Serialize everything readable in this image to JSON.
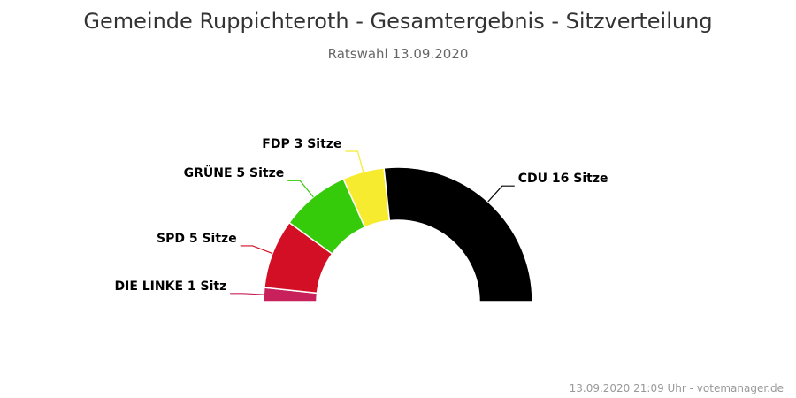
{
  "chart_data": {
    "type": "pie",
    "variant": "semicircle-parliament",
    "title": "Gemeinde Ruppichteroth - Gesamtergebnis - Sitzverteilung",
    "subtitle": "Ratswahl 13.09.2020",
    "slices": [
      {
        "party": "DIE LINKE",
        "seats": 1,
        "label": "DIE LINKE 1 Sitz",
        "color": "#c8205a"
      },
      {
        "party": "SPD",
        "seats": 5,
        "label": "SPD 5 Sitze",
        "color": "#d20f25"
      },
      {
        "party": "GRÜNE",
        "seats": 5,
        "label": "GRÜNE 5 Sitze",
        "color": "#36cb0a"
      },
      {
        "party": "FDP",
        "seats": 3,
        "label": "FDP 3 Sitze",
        "color": "#f7eb30"
      },
      {
        "party": "CDU",
        "seats": 16,
        "label": "CDU 16 Sitze",
        "color": "#000000"
      }
    ],
    "total_seats": 30
  },
  "credit": "13.09.2020 21:09 Uhr - votemanager.de"
}
